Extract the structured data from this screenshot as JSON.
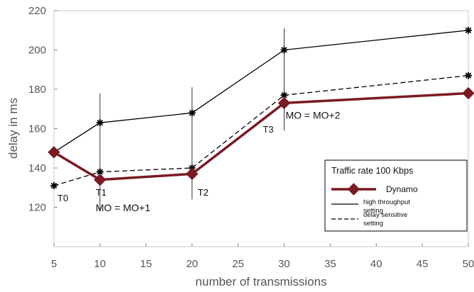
{
  "chart_data": {
    "type": "line",
    "title": "",
    "xlabel": "number of transmissions",
    "ylabel": "delay in ms",
    "xlim": [
      5,
      50
    ],
    "ylim": [
      100,
      220
    ],
    "xticks": [
      5,
      10,
      15,
      20,
      25,
      30,
      35,
      40,
      45,
      50
    ],
    "yticks": [
      120,
      140,
      160,
      180,
      200,
      220
    ],
    "grid": false,
    "legend": {
      "title": "Traffic rate 100 Kbps",
      "position": "lower-right"
    },
    "series": [
      {
        "name": "high throughput setting",
        "name_lines": [
          "high throughput",
          "setting"
        ],
        "style": "solid",
        "color": "#000000",
        "marker": "asterisk",
        "x": [
          5,
          10,
          20,
          30,
          50
        ],
        "y": [
          148,
          163,
          168,
          200,
          210
        ]
      },
      {
        "name": "delay sensitive setting",
        "name_lines": [
          "delay sensitive",
          "setting"
        ],
        "style": "dashed",
        "color": "#000000",
        "marker": "asterisk",
        "x": [
          5,
          10,
          20,
          30,
          50
        ],
        "y": [
          131,
          138,
          140,
          177,
          187
        ]
      },
      {
        "name": "Dynamo",
        "style": "solid-thick",
        "color": "#7a1a22",
        "marker": "diamond",
        "x": [
          5,
          10,
          20,
          30,
          50
        ],
        "y": [
          148,
          134,
          137,
          173,
          178
        ]
      }
    ],
    "error_bars": [
      {
        "x": 10,
        "ymin": 118,
        "ymax": 178
      },
      {
        "x": 20,
        "ymin": 124,
        "ymax": 181
      },
      {
        "x": 30,
        "ymin": 159,
        "ymax": 211
      }
    ],
    "annotations": [
      {
        "text": "T0",
        "x": 5,
        "y": 123
      },
      {
        "text": "T1",
        "x": 10,
        "y": 126
      },
      {
        "text": "MO = MO+1",
        "x": 10,
        "y": 118
      },
      {
        "text": "T2",
        "x": 20,
        "y": 126
      },
      {
        "text": "T3",
        "x": 30,
        "y": 158
      },
      {
        "text": "MO = MO+2",
        "x": 30,
        "y": 165
      }
    ]
  }
}
